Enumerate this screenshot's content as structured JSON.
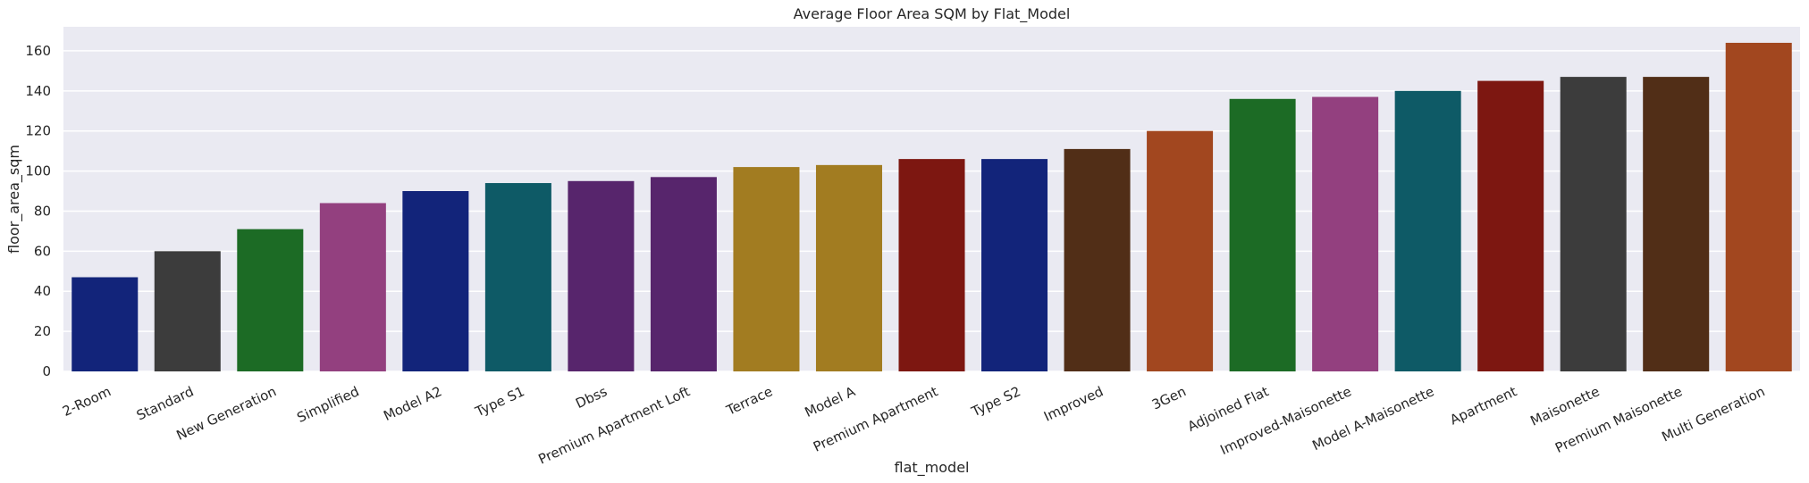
{
  "chart_data": {
    "type": "bar",
    "title": "Average Floor Area SQM by Flat_Model",
    "xlabel": "flat_model",
    "ylabel": "floor_area_sqm",
    "ylim": [
      0,
      172
    ],
    "yticks": [
      0,
      20,
      40,
      60,
      80,
      100,
      120,
      140,
      160
    ],
    "grid": true,
    "background": "#eaeaf2",
    "categories": [
      "2-Room",
      "Standard",
      "New Generation",
      "Simplified",
      "Model A2",
      "Type S1",
      "Dbss",
      "Premium Apartment Loft",
      "Terrace",
      "Model A",
      "Premium Apartment",
      "Type S2",
      "Improved",
      "3Gen",
      "Adjoined Flat",
      "Improved-Maisonette",
      "Model A-Maisonette",
      "Apartment",
      "Maisonette",
      "Premium Maisonette",
      "Multi Generation"
    ],
    "values": [
      47,
      60,
      71,
      84,
      90,
      94,
      95,
      97,
      102,
      103,
      106,
      106,
      111,
      120,
      136,
      137,
      140,
      145,
      147,
      147,
      164
    ],
    "colors": [
      "#12247a",
      "#3c3c3c",
      "#1c6b25",
      "#93407f",
      "#12247a",
      "#0e5a66",
      "#57256c",
      "#57256c",
      "#a27c21",
      "#a27c21",
      "#7d1711",
      "#12247a",
      "#512e17",
      "#a2471f",
      "#1c6b25",
      "#93407f",
      "#0e5a66",
      "#7d1711",
      "#3c3c3c",
      "#512e17",
      "#a2471f"
    ]
  }
}
